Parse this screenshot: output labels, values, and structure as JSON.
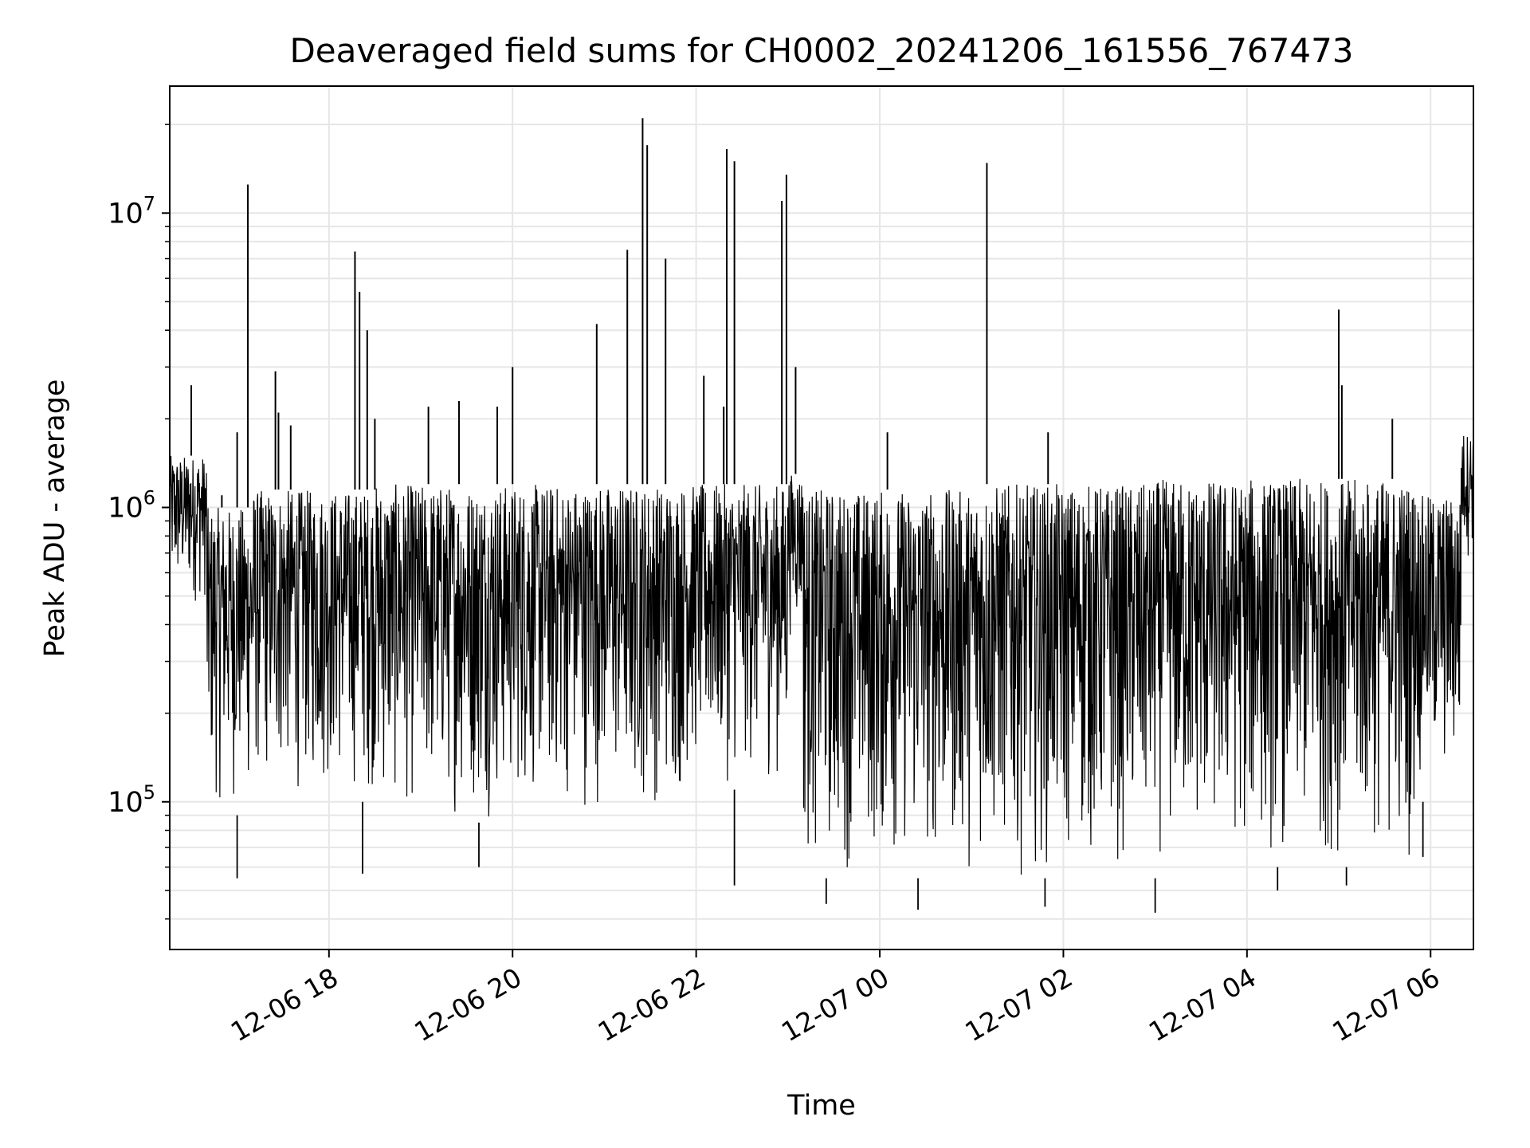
{
  "chart_data": {
    "type": "line",
    "title": "Deaveraged field sums for CH0002_20241206_161556_767473",
    "xlabel": "Time",
    "ylabel": "Peak ADU - average",
    "xlim": [
      "2024-12-06T16:15:56",
      "2024-12-07T06:28:00"
    ],
    "ylim": [
      31500,
      27000000
    ],
    "yscale": "log",
    "grid": true,
    "line_color": "#000000",
    "x_ticks": [
      {
        "t": "2024-12-06T18:00:00",
        "label": "12-06 18"
      },
      {
        "t": "2024-12-06T20:00:00",
        "label": "12-06 20"
      },
      {
        "t": "2024-12-06T22:00:00",
        "label": "12-06 22"
      },
      {
        "t": "2024-12-07T00:00:00",
        "label": "12-07 00"
      },
      {
        "t": "2024-12-07T02:00:00",
        "label": "12-07 02"
      },
      {
        "t": "2024-12-07T04:00:00",
        "label": "12-07 04"
      },
      {
        "t": "2024-12-07T06:00:00",
        "label": "12-07 06"
      }
    ],
    "y_ticks": [
      {
        "value": 100000,
        "base": "10",
        "exp": "5"
      },
      {
        "value": 1000000,
        "base": "10",
        "exp": "6"
      },
      {
        "value": 10000000,
        "base": "10",
        "exp": "7"
      }
    ],
    "band": {
      "description_free": true,
      "segments": [
        {
          "t0": "2024-12-06T16:15:56",
          "t1": "2024-12-06T16:40:00",
          "low": 450000,
          "high": 1500000
        },
        {
          "t0": "2024-12-06T16:40:00",
          "t1": "2024-12-06T17:10:00",
          "low": 90000,
          "high": 1000000
        },
        {
          "t0": "2024-12-06T17:10:00",
          "t1": "2024-12-06T18:30:00",
          "low": 100000,
          "high": 1150000
        },
        {
          "t0": "2024-12-06T18:30:00",
          "t1": "2024-12-06T20:00:00",
          "low": 85000,
          "high": 1200000
        },
        {
          "t0": "2024-12-06T20:00:00",
          "t1": "2024-12-06T21:50:00",
          "low": 90000,
          "high": 1200000
        },
        {
          "t0": "2024-12-06T21:50:00",
          "t1": "2024-12-06T23:00:00",
          "low": 110000,
          "high": 1200000
        },
        {
          "t0": "2024-12-06T23:00:00",
          "t1": "2024-12-06T23:10:00",
          "low": 350000,
          "high": 1300000
        },
        {
          "t0": "2024-12-06T23:10:00",
          "t1": "2024-12-07T01:00:00",
          "low": 55000,
          "high": 1150000
        },
        {
          "t0": "2024-12-07T01:00:00",
          "t1": "2024-12-07T03:00:00",
          "low": 55000,
          "high": 1200000
        },
        {
          "t0": "2024-12-07T03:00:00",
          "t1": "2024-12-07T05:50:00",
          "low": 60000,
          "high": 1250000
        },
        {
          "t0": "2024-12-07T05:50:00",
          "t1": "2024-12-07T06:20:00",
          "low": 100000,
          "high": 1100000
        },
        {
          "t0": "2024-12-07T06:20:00",
          "t1": "2024-12-07T06:28:00",
          "low": 650000,
          "high": 1800000
        }
      ]
    },
    "spikes": [
      {
        "t": "2024-12-06T16:30:00",
        "value": 2600000
      },
      {
        "t": "2024-12-06T16:50:00",
        "value": 1100000
      },
      {
        "t": "2024-12-06T17:00:00",
        "value": 1800000
      },
      {
        "t": "2024-12-06T17:07:00",
        "value": 12500000
      },
      {
        "t": "2024-12-06T17:25:00",
        "value": 2900000
      },
      {
        "t": "2024-12-06T17:27:00",
        "value": 2100000
      },
      {
        "t": "2024-12-06T17:35:00",
        "value": 1900000
      },
      {
        "t": "2024-12-06T18:17:00",
        "value": 7400000
      },
      {
        "t": "2024-12-06T18:20:00",
        "value": 5400000
      },
      {
        "t": "2024-12-06T18:25:00",
        "value": 4000000
      },
      {
        "t": "2024-12-06T18:30:00",
        "value": 2000000
      },
      {
        "t": "2024-12-06T19:05:00",
        "value": 2200000
      },
      {
        "t": "2024-12-06T19:25:00",
        "value": 2300000
      },
      {
        "t": "2024-12-06T19:50:00",
        "value": 2200000
      },
      {
        "t": "2024-12-06T20:00:00",
        "value": 3000000
      },
      {
        "t": "2024-12-06T20:55:00",
        "value": 4200000
      },
      {
        "t": "2024-12-06T21:15:00",
        "value": 7500000
      },
      {
        "t": "2024-12-06T21:25:00",
        "value": 21000000
      },
      {
        "t": "2024-12-06T21:28:00",
        "value": 17000000
      },
      {
        "t": "2024-12-06T21:40:00",
        "value": 7000000
      },
      {
        "t": "2024-12-06T22:05:00",
        "value": 2800000
      },
      {
        "t": "2024-12-06T22:18:00",
        "value": 2200000
      },
      {
        "t": "2024-12-06T22:20:00",
        "value": 16500000
      },
      {
        "t": "2024-12-06T22:25:00",
        "value": 15000000
      },
      {
        "t": "2024-12-06T22:56:00",
        "value": 11000000
      },
      {
        "t": "2024-12-06T22:59:00",
        "value": 13500000
      },
      {
        "t": "2024-12-06T23:05:00",
        "value": 3000000
      },
      {
        "t": "2024-12-07T00:05:00",
        "value": 1800000
      },
      {
        "t": "2024-12-07T01:10:00",
        "value": 14800000
      },
      {
        "t": "2024-12-07T01:50:00",
        "value": 1800000
      },
      {
        "t": "2024-12-07T05:00:00",
        "value": 4700000
      },
      {
        "t": "2024-12-07T05:02:00",
        "value": 2600000
      },
      {
        "t": "2024-12-07T05:35:00",
        "value": 2000000
      }
    ],
    "dips": [
      {
        "t": "2024-12-06T17:00:00",
        "value": 55000
      },
      {
        "t": "2024-12-06T18:22:00",
        "value": 57000
      },
      {
        "t": "2024-12-06T19:38:00",
        "value": 60000
      },
      {
        "t": "2024-12-06T22:25:00",
        "value": 52000
      },
      {
        "t": "2024-12-06T23:25:00",
        "value": 45000
      },
      {
        "t": "2024-12-07T00:25:00",
        "value": 43000
      },
      {
        "t": "2024-12-07T01:48:00",
        "value": 44000
      },
      {
        "t": "2024-12-07T03:00:00",
        "value": 42000
      },
      {
        "t": "2024-12-07T04:20:00",
        "value": 50000
      },
      {
        "t": "2024-12-07T05:05:00",
        "value": 52000
      },
      {
        "t": "2024-12-07T05:55:00",
        "value": 65000
      }
    ]
  }
}
